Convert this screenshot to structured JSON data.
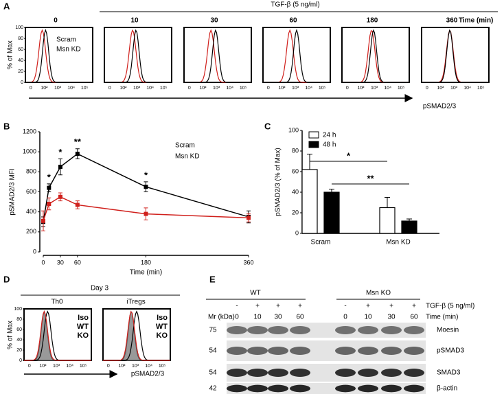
{
  "panel_labels": [
    "A",
    "B",
    "C",
    "D",
    "E"
  ],
  "panel_a": {
    "treatment": "TGF-β (5 ng/ml)",
    "time_label": "Time (min)",
    "times": [
      "0",
      "10",
      "30",
      "60",
      "180",
      "360"
    ],
    "legend": [
      "Scram",
      "Msn KD"
    ],
    "y_label": "% of Max",
    "x_label": "pSMAD2/3",
    "ylim": [
      0,
      100
    ],
    "yticks": [
      0,
      20,
      40,
      60,
      80,
      100
    ],
    "xtick_labels": [
      "0",
      "10²",
      "10³",
      "10⁴",
      "10⁵"
    ]
  },
  "chart_data": [
    {
      "type": "line",
      "y_label": "pSMAD2/3 MFI",
      "x_label": "Time (min)",
      "x": [
        0,
        10,
        30,
        60,
        180,
        360
      ],
      "xlim": [
        0,
        360
      ],
      "xticks": [
        0,
        30,
        60,
        180,
        360
      ],
      "ylim": [
        0,
        1200
      ],
      "yticks": [
        0,
        200,
        400,
        600,
        800,
        1000,
        1200
      ],
      "series": [
        {
          "name": "Scram",
          "color": "#000000",
          "values": [
            300,
            640,
            850,
            980,
            650,
            350
          ],
          "errors": [
            50,
            40,
            80,
            50,
            50,
            60
          ]
        },
        {
          "name": "Msn KD",
          "color": "#d0201c",
          "values": [
            310,
            480,
            550,
            470,
            380,
            340
          ],
          "errors": [
            100,
            60,
            40,
            40,
            60,
            40
          ]
        }
      ],
      "significance": [
        null,
        "*",
        "*",
        "**",
        "*",
        null
      ]
    },
    {
      "type": "bar",
      "y_label": "pSMAD2/3 (% of Max)",
      "categories": [
        "Scram",
        "Msn KD"
      ],
      "ylim": [
        0,
        100
      ],
      "yticks": [
        0,
        20,
        40,
        60,
        80,
        100
      ],
      "series": [
        {
          "name": "24 h",
          "color": "#ffffff",
          "values": [
            62,
            25
          ],
          "errors": [
            15,
            10
          ]
        },
        {
          "name": "48 h",
          "color": "#000000",
          "values": [
            40,
            12
          ],
          "errors": [
            3,
            2
          ]
        }
      ],
      "significance": [
        "*",
        "**"
      ]
    }
  ],
  "panel_d": {
    "day": "Day 3",
    "groups": [
      "Th0",
      "iTregs"
    ],
    "legend": [
      "Iso",
      "WT",
      "KO"
    ],
    "y_label": "% of Max",
    "x_label": "pSMAD2/3",
    "ylim": [
      0,
      100
    ],
    "yticks": [
      0,
      20,
      40,
      60,
      80,
      100
    ],
    "xtick_labels": [
      "0",
      "10²",
      "10³",
      "10⁴",
      "10⁵"
    ]
  },
  "panel_e": {
    "groups": [
      "WT",
      "Msn KO"
    ],
    "treatment_label": "TGF-β (5 ng/ml)",
    "time_label": "Time (min)",
    "mr_label": "Mr (kDa)",
    "treatment": [
      "-",
      "+",
      "+",
      "+",
      "-",
      "+",
      "+",
      "+"
    ],
    "times": [
      "0",
      "10",
      "30",
      "60",
      "0",
      "10",
      "30",
      "60"
    ],
    "rows": [
      {
        "mw": "75",
        "protein": "Moesin"
      },
      {
        "mw": "54",
        "protein": "pSMAD3"
      },
      {
        "mw": "54",
        "protein": "SMAD3"
      },
      {
        "mw": "42",
        "protein": "β-actin"
      }
    ]
  }
}
